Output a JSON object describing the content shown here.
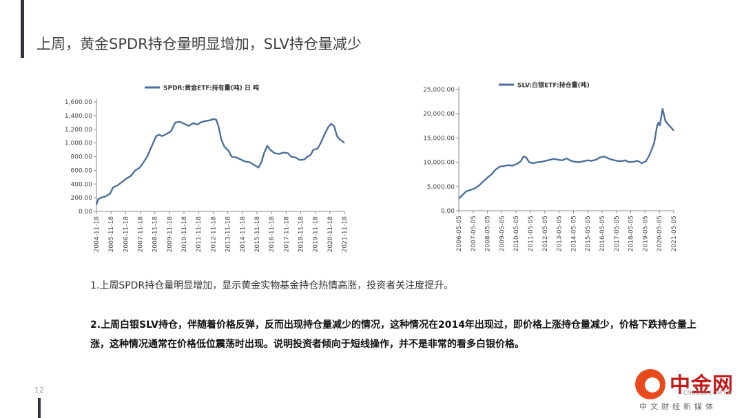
{
  "title": "上周，黄金SPDR持仓量明显增加，SLV持仓量减少",
  "notes": [
    "1.上周SPDR持仓量明显增加，显示黄金实物基金持仓热情高涨，投资者关注度提升。",
    "2.上周白银SLV持仓，伴随着价格反弹，反而出现持仓量减少的情况，这种情况在2014年出现过，即价格上涨持仓量减少，价格下跌持仓量上涨，这种情况通常在价格低位震荡时出现。说明投资者倾向于短线操作，并不是非常的看多白银价格。"
  ],
  "page_number": "12",
  "logo": {
    "name": "中金网",
    "domain": "CNGOLD.COM.CN",
    "tagline": "中文财经新媒体"
  },
  "colors": {
    "line": "#4a6f9c",
    "axis": "#8a8a8a",
    "bar": "#2d3345",
    "logo_red": "#c41a1a",
    "logo_orange": "#e8491d"
  },
  "chart_data": [
    {
      "type": "line",
      "legend": "SPDR:黄金ETF:持有量(吨) 日 吨",
      "legend_position": "top",
      "ylim": [
        0,
        1600
      ],
      "yticks": [
        "0.00",
        "200.00",
        "400.00",
        "600.00",
        "800.00",
        "1,000.00",
        "1,200.00",
        "1,400.00",
        "1,600.00"
      ],
      "xlim": [
        2004.88,
        2021.6
      ],
      "xticks": [
        "2004-11-18",
        "2005-11-18",
        "2006-11-18",
        "2007-11-18",
        "2008-11-18",
        "2009-11-18",
        "2010-11-18",
        "2011-11-18",
        "2012-11-18",
        "2013-11-18",
        "2014-11-18",
        "2015-11-18",
        "2016-11-18",
        "2017-11-18",
        "2018-11-18",
        "2019-11-18",
        "2020-11-18",
        "2021-11-18"
      ],
      "series": [
        {
          "x": [
            2004.88,
            2005.0,
            2005.2,
            2005.5,
            2005.8,
            2006.0,
            2006.3,
            2006.6,
            2006.9,
            2007.2,
            2007.5,
            2007.8,
            2008.0,
            2008.3,
            2008.6,
            2008.9,
            2009.1,
            2009.3,
            2009.6,
            2009.9,
            2010.2,
            2010.5,
            2010.8,
            2011.1,
            2011.4,
            2011.7,
            2011.9,
            2012.2,
            2012.5,
            2012.8,
            2012.95,
            2013.1,
            2013.3,
            2013.5,
            2013.8,
            2014.0,
            2014.3,
            2014.6,
            2014.9,
            2015.2,
            2015.5,
            2015.8,
            2016.0,
            2016.2,
            2016.4,
            2016.6,
            2016.9,
            2017.2,
            2017.5,
            2017.8,
            2018.0,
            2018.3,
            2018.6,
            2018.9,
            2019.1,
            2019.3,
            2019.5,
            2019.8,
            2020.0,
            2020.2,
            2020.5,
            2020.7,
            2020.9,
            2021.1,
            2021.3,
            2021.5,
            2021.6
          ],
          "y": [
            100,
            180,
            200,
            220,
            260,
            350,
            380,
            430,
            480,
            520,
            600,
            640,
            700,
            800,
            950,
            1100,
            1120,
            1100,
            1130,
            1170,
            1300,
            1310,
            1280,
            1250,
            1290,
            1270,
            1300,
            1320,
            1330,
            1350,
            1340,
            1250,
            1050,
            950,
            880,
            800,
            790,
            760,
            730,
            720,
            680,
            640,
            720,
            860,
            960,
            900,
            850,
            840,
            860,
            850,
            800,
            790,
            750,
            760,
            800,
            820,
            900,
            920,
            1000,
            1100,
            1230,
            1280,
            1250,
            1100,
            1050,
            1020,
            1000
          ]
        }
      ]
    },
    {
      "type": "line",
      "legend": "SLV:白银ETF:持仓量(吨)",
      "legend_position": "top",
      "ylim": [
        0,
        25000
      ],
      "yticks": [
        "0.00",
        "5,000.00",
        "10,000.00",
        "15,000.00",
        "20,000.00",
        "25,000.00"
      ],
      "xlim": [
        2006.35,
        2021.8
      ],
      "xticks": [
        "2006-05-05",
        "2007-05-05",
        "2008-05-05",
        "2009-05-05",
        "2010-05-05",
        "2011-05-05",
        "2012-05-05",
        "2013-05-05",
        "2014-05-05",
        "2015-05-05",
        "2016-05-05",
        "2017-05-05",
        "2018-05-05",
        "2019-05-05",
        "2020-05-05",
        "2021-05-05"
      ],
      "series": [
        {
          "x": [
            2006.35,
            2006.6,
            2006.9,
            2007.2,
            2007.5,
            2007.8,
            2008.1,
            2008.4,
            2008.7,
            2009.0,
            2009.3,
            2009.6,
            2009.9,
            2010.2,
            2010.5,
            2010.8,
            2011.0,
            2011.2,
            2011.4,
            2011.7,
            2012.0,
            2012.3,
            2012.6,
            2012.9,
            2013.2,
            2013.5,
            2013.8,
            2014.1,
            2014.4,
            2014.7,
            2015.0,
            2015.3,
            2015.6,
            2015.9,
            2016.2,
            2016.5,
            2016.8,
            2017.1,
            2017.4,
            2017.7,
            2018.0,
            2018.3,
            2018.6,
            2018.9,
            2019.2,
            2019.5,
            2019.8,
            2020.0,
            2020.2,
            2020.4,
            2020.6,
            2020.7,
            2020.8,
            2021.0,
            2021.2,
            2021.4,
            2021.6,
            2021.8
          ],
          "y": [
            2500,
            3200,
            4000,
            4300,
            4600,
            5200,
            6000,
            6800,
            7500,
            8500,
            9100,
            9200,
            9400,
            9300,
            9600,
            10200,
            11200,
            11000,
            10000,
            9800,
            10000,
            10100,
            10300,
            10500,
            10700,
            10500,
            10400,
            10800,
            10300,
            10100,
            10000,
            10200,
            10400,
            10300,
            10500,
            11000,
            11200,
            10800,
            10500,
            10300,
            10200,
            10400,
            10000,
            10100,
            10300,
            9800,
            10200,
            11200,
            12500,
            14000,
            17500,
            18200,
            17600,
            21000,
            18500,
            17800,
            17200,
            16500
          ]
        }
      ]
    }
  ]
}
